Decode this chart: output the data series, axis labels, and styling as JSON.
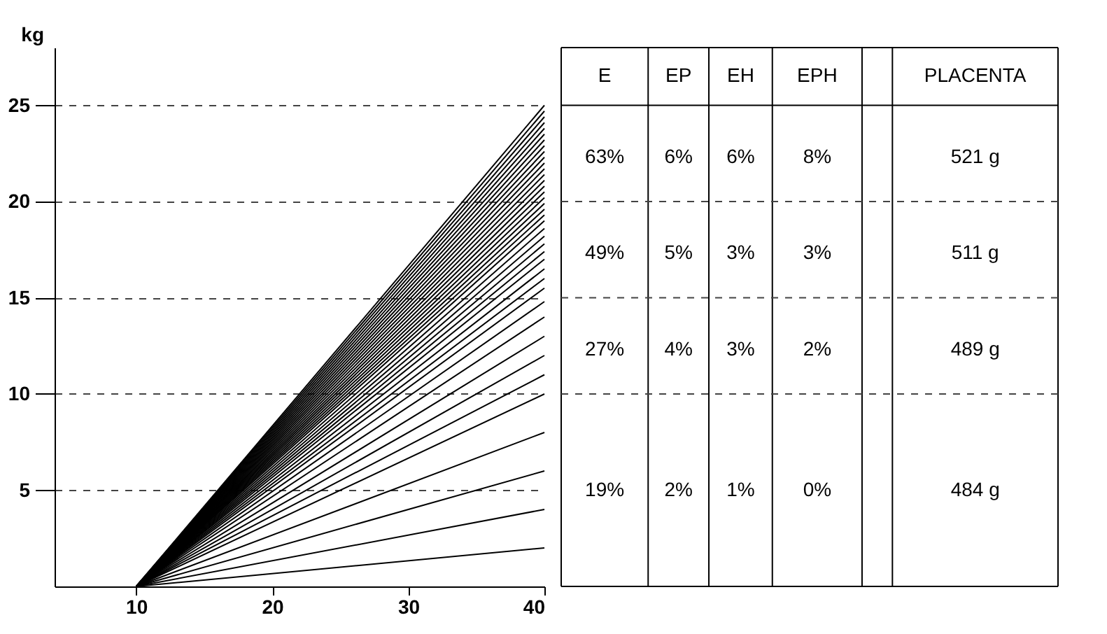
{
  "chart_data": [
    {
      "type": "line",
      "ylabel": "kg",
      "x": [
        10,
        40
      ],
      "xlim": [
        4,
        40
      ],
      "xticks": [
        10,
        20,
        30,
        40
      ],
      "ylim": [
        0,
        28
      ],
      "yticks": [
        5,
        10,
        15,
        20,
        25
      ],
      "grid": "y",
      "legend": false,
      "marker": "none",
      "line_style": "solid",
      "series": [
        {
          "color": "#000000",
          "values": [
            0,
            2
          ]
        },
        {
          "color": "#000000",
          "values": [
            0,
            4
          ]
        },
        {
          "color": "#000000",
          "values": [
            0,
            6
          ]
        },
        {
          "color": "#000000",
          "values": [
            0,
            8
          ]
        },
        {
          "color": "#000000",
          "values": [
            0,
            10
          ]
        },
        {
          "color": "#000000",
          "values": [
            0,
            11
          ]
        },
        {
          "color": "#000000",
          "values": [
            0,
            12
          ]
        },
        {
          "color": "#000000",
          "values": [
            0,
            13
          ]
        },
        {
          "color": "#000000",
          "values": [
            0,
            14
          ]
        },
        {
          "color": "#000000",
          "values": [
            0,
            14.8
          ]
        },
        {
          "color": "#000000",
          "values": [
            0,
            15.5
          ]
        },
        {
          "color": "#000000",
          "values": [
            0,
            16
          ]
        },
        {
          "color": "#000000",
          "values": [
            0,
            16.5
          ]
        },
        {
          "color": "#000000",
          "values": [
            0,
            17
          ]
        },
        {
          "color": "#000000",
          "values": [
            0,
            17.4
          ]
        },
        {
          "color": "#000000",
          "values": [
            0,
            17.8
          ]
        },
        {
          "color": "#000000",
          "values": [
            0,
            18.2
          ]
        },
        {
          "color": "#000000",
          "values": [
            0,
            18.6
          ]
        },
        {
          "color": "#000000",
          "values": [
            0,
            19
          ]
        },
        {
          "color": "#000000",
          "values": [
            0,
            19.3
          ]
        },
        {
          "color": "#000000",
          "values": [
            0,
            19.6
          ]
        },
        {
          "color": "#000000",
          "values": [
            0,
            19.9
          ]
        },
        {
          "color": "#000000",
          "values": [
            0,
            20.2
          ]
        },
        {
          "color": "#000000",
          "values": [
            0,
            20.5
          ]
        },
        {
          "color": "#000000",
          "values": [
            0,
            20.8
          ]
        },
        {
          "color": "#000000",
          "values": [
            0,
            21.1
          ]
        },
        {
          "color": "#000000",
          "values": [
            0,
            21.4
          ]
        },
        {
          "color": "#000000",
          "values": [
            0,
            21.7
          ]
        },
        {
          "color": "#000000",
          "values": [
            0,
            22
          ]
        },
        {
          "color": "#000000",
          "values": [
            0,
            22.3
          ]
        },
        {
          "color": "#000000",
          "values": [
            0,
            22.6
          ]
        },
        {
          "color": "#000000",
          "values": [
            0,
            22.9
          ]
        },
        {
          "color": "#000000",
          "values": [
            0,
            23.2
          ]
        },
        {
          "color": "#000000",
          "values": [
            0,
            23.5
          ]
        },
        {
          "color": "#000000",
          "values": [
            0,
            23.8
          ]
        },
        {
          "color": "#000000",
          "values": [
            0,
            24.1
          ]
        },
        {
          "color": "#000000",
          "values": [
            0,
            24.4
          ]
        },
        {
          "color": "#000000",
          "values": [
            0,
            24.7
          ]
        },
        {
          "color": "#000000",
          "values": [
            0,
            25
          ]
        }
      ]
    },
    {
      "type": "other",
      "categories": [
        "E",
        "EP",
        "EH",
        "EPH",
        null,
        "PLACENTA"
      ],
      "annotations": [
        "63%",
        "6%",
        "6%",
        "8%",
        "521 g",
        "49%",
        "5%",
        "3%",
        "3%",
        "511 g",
        "27%",
        "4%",
        "3%",
        "2%",
        "489 g",
        "19%",
        "2%",
        "1%",
        "0%",
        "484 g"
      ]
    }
  ]
}
